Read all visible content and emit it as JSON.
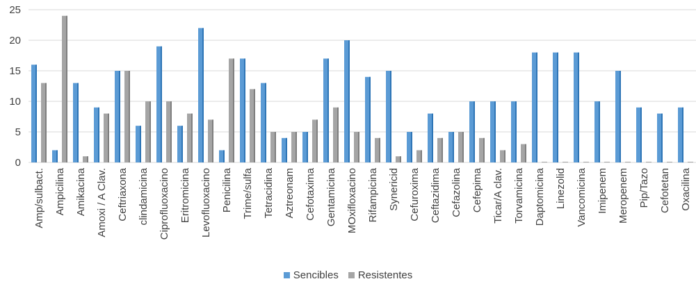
{
  "chart_data": {
    "type": "bar",
    "title": "",
    "xlabel": "",
    "ylabel": "",
    "ylim": [
      0,
      25
    ],
    "yticks": [
      0,
      5,
      10,
      15,
      20,
      25
    ],
    "grid": true,
    "legend_position": "bottom",
    "categories": [
      "Amp/sulbact.",
      "Ampicilina",
      "Amikacina",
      "Amoxi / A Clav.",
      "Ceftriaxona",
      "clindamicina",
      "Ciprofluoxacino",
      "Eritromicina",
      "Levofluoxacino",
      "Penicilina",
      "Trime/sulfa",
      "Tetracidina",
      "Aztreonam",
      "Cefotaxima",
      "Gentamicina",
      "MOxifloxacino",
      "Rifampicina",
      "Synericid",
      "Cefuroxima",
      "Ceftazidima",
      "Cefazolina",
      "Cefepima",
      "Ticar/A clav.",
      "Torvamicina",
      "Daptomicina",
      "Linezolid",
      "Vancomicina",
      "Imipenem",
      "Meropenem",
      "Pip/Tazo",
      "Cefotetan",
      "Oxacilina"
    ],
    "series": [
      {
        "name": "Sencibles",
        "color": "#5b9bd5",
        "values": [
          16,
          2,
          13,
          9,
          15,
          6,
          19,
          6,
          22,
          2,
          17,
          13,
          4,
          5,
          17,
          20,
          14,
          15,
          5,
          8,
          5,
          10,
          10,
          10,
          18,
          18,
          18,
          10,
          15,
          9,
          8,
          9
        ]
      },
      {
        "name": "Resistentes",
        "color": "#a5a5a5",
        "values": [
          13,
          24,
          1,
          8,
          15,
          10,
          10,
          8,
          7,
          17,
          12,
          5,
          5,
          7,
          9,
          5,
          4,
          1,
          2,
          4,
          5,
          4,
          2,
          3,
          0,
          0,
          0,
          0,
          0,
          0,
          0,
          0
        ]
      }
    ]
  }
}
